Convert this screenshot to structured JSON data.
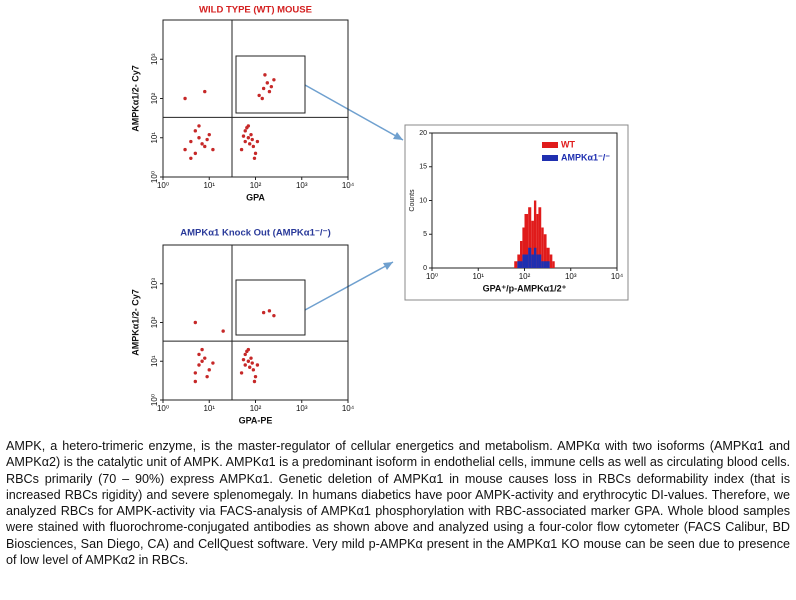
{
  "chart_data": [
    {
      "type": "scatter",
      "title": "WILD TYPE (WT) MOUSE",
      "title_color": "#d42020",
      "color": "#c62828",
      "x_label": "GPA",
      "y_label": "AMPKα1/2- Cy7",
      "log": true,
      "x": [
        3,
        4,
        5,
        6,
        8,
        10,
        5,
        7,
        4,
        9,
        6,
        12,
        50,
        60,
        70,
        80,
        90,
        100,
        60,
        75,
        85,
        55,
        95,
        65,
        110,
        70,
        120,
        150,
        180,
        200,
        250,
        160,
        220,
        140,
        3,
        8
      ],
      "values": [
        5,
        8,
        4,
        10,
        6,
        12,
        15,
        7,
        3,
        9,
        20,
        5,
        5,
        8,
        10,
        12,
        6,
        4,
        15,
        7,
        9,
        11,
        3,
        18,
        8,
        20,
        120,
        180,
        250,
        150,
        300,
        400,
        200,
        100,
        100,
        150
      ],
      "xlim": [
        1,
        10000
      ],
      "ylim": [
        1,
        10000
      ],
      "xticks": [
        {
          "value": 1,
          "label": "10⁰"
        },
        {
          "value": 10,
          "label": "10¹"
        },
        {
          "value": 100,
          "label": "10²"
        },
        {
          "value": 1000,
          "label": "10³"
        },
        {
          "value": 10000,
          "label": "10⁴"
        }
      ],
      "yticks": [
        {
          "value": 1,
          "label": "10⁰"
        },
        {
          "value": 10,
          "label": "10¹"
        },
        {
          "value": 100,
          "label": "10²"
        },
        {
          "value": 1000,
          "label": "10³"
        }
      ]
    },
    {
      "type": "scatter",
      "title": "AMPKα1 Knock Out (AMPKα1⁻/⁻)",
      "title_color": "#2a3a9a",
      "color": "#c62828",
      "x_label": "GPA-PE",
      "y_label": "AMPKα1/2- Cy7",
      "log": true,
      "x": [
        5,
        6,
        7,
        8,
        10,
        6,
        9,
        12,
        7,
        5,
        50,
        60,
        70,
        80,
        90,
        100,
        60,
        75,
        85,
        55,
        95,
        65,
        110,
        70,
        150,
        200,
        250,
        5,
        20
      ],
      "values": [
        5,
        8,
        10,
        12,
        6,
        15,
        4,
        9,
        20,
        3,
        5,
        8,
        10,
        12,
        6,
        4,
        15,
        7,
        9,
        11,
        3,
        18,
        8,
        20,
        180,
        200,
        150,
        100,
        60
      ],
      "xlim": [
        1,
        10000
      ],
      "ylim": [
        1,
        10000
      ],
      "xticks": [
        {
          "value": 1,
          "label": "10⁰"
        },
        {
          "value": 10,
          "label": "10¹"
        },
        {
          "value": 100,
          "label": "10²"
        },
        {
          "value": 1000,
          "label": "10³"
        },
        {
          "value": 10000,
          "label": "10⁴"
        }
      ],
      "yticks": [
        {
          "value": 1,
          "label": "10⁰"
        },
        {
          "value": 10,
          "label": "10¹"
        },
        {
          "value": 100,
          "label": "10²"
        },
        {
          "value": 1000,
          "label": "10³"
        }
      ]
    },
    {
      "type": "histogram",
      "x_label": "GPA⁺/p-AMPKα1/2⁺",
      "y_label": "Counts",
      "log": true,
      "legend": "upper right",
      "bins": [
        60,
        70,
        80,
        90,
        100,
        120,
        140,
        160,
        180,
        200,
        230,
        260,
        300,
        350,
        400,
        450
      ],
      "series": [
        {
          "name": "WT",
          "color": "#e01b1b",
          "values": [
            1,
            2,
            4,
            6,
            8,
            9,
            7,
            10,
            8,
            9,
            6,
            5,
            3,
            2,
            1
          ]
        },
        {
          "name": "AMPKα1⁻/⁻",
          "color": "#1f2fb0",
          "values": [
            0,
            1,
            1,
            2,
            2,
            3,
            2,
            3,
            2,
            2,
            1,
            1,
            1,
            0,
            0
          ]
        }
      ],
      "xlim": [
        1,
        10000
      ],
      "ylim": [
        0,
        20
      ],
      "xticks": [
        {
          "value": 1,
          "label": "10⁰"
        },
        {
          "value": 10,
          "label": "10¹"
        },
        {
          "value": 100,
          "label": "10²"
        },
        {
          "value": 1000,
          "label": "10³"
        },
        {
          "value": 10000,
          "label": "10⁴"
        }
      ],
      "yticks": [
        0,
        5,
        10,
        15,
        20
      ]
    }
  ],
  "paragraph": "AMPK, a hetero-trimeric enzyme, is the master-regulator of cellular energetics and metabolism. AMPKα with two isoforms (AMPKα1 and AMPKα2) is the catalytic unit of AMPK. AMPKα1 is a predominant isoform in endothelial cells, immune cells as well as circulating blood cells. RBCs primarily (70 – 90%) express AMPKα1. Genetic deletion of AMPKα1 in mouse causes loss in RBCs deformability index (that is increased RBCs rigidity) and severe splenomegaly. In humans diabetics have poor AMPK-activity and erythrocytic DI-values. Therefore, we analyzed RBCs for AMPK-activity via FACS-analysis of AMPKα1 phosphorylation with RBC-associated marker GPA. Whole blood samples were stained with fluorochrome-conjugated antibodies as shown above and analyzed using a four-color flow cytometer (FACS Calibur, BD Biosciences, San Diego, CA) and CellQuest software. Very mild p-AMPKα present in the AMPKα1 KO mouse can be seen due to presence of low level of AMPKα2 in RBCs."
}
